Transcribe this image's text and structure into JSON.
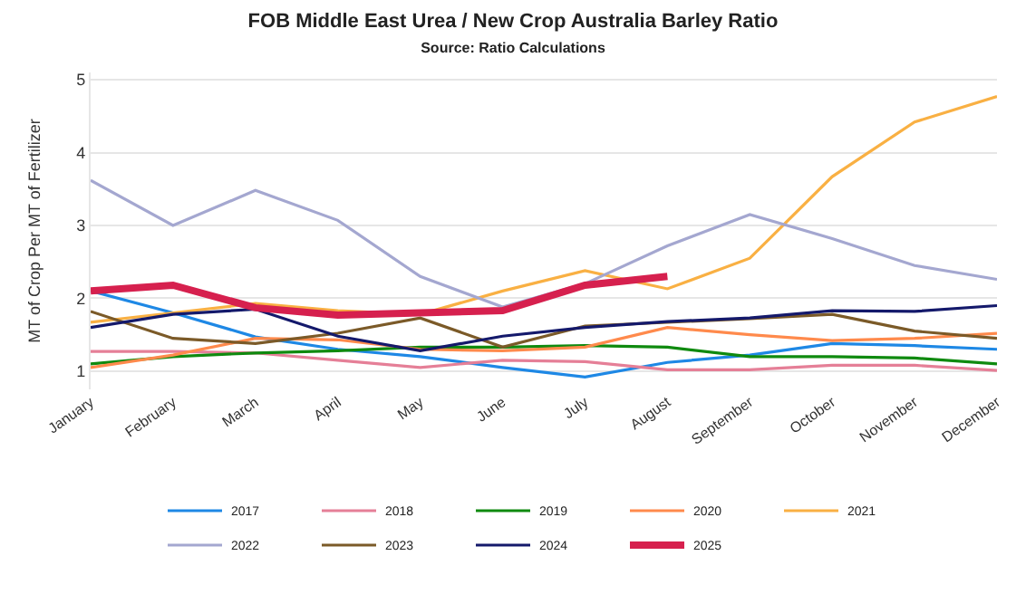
{
  "chart_data": {
    "type": "line",
    "title": "FOB Middle East Urea / New Crop Australia Barley Ratio",
    "subtitle": "Source: Ratio Calculations",
    "ylabel": "MT of Crop Per MT of Fertilizer",
    "categories": [
      "January",
      "February",
      "March",
      "April",
      "May",
      "June",
      "July",
      "August",
      "September",
      "October",
      "November",
      "December"
    ],
    "ylim": [
      0.75,
      5.1
    ],
    "yticks": [
      1,
      2,
      3,
      4,
      5
    ],
    "grid": "y",
    "legend": "bottom",
    "marker": "none",
    "line_style": "solid",
    "series": [
      {
        "name": "2017",
        "color": "#1e88e5",
        "values": [
          2.1,
          1.8,
          1.47,
          1.3,
          1.2,
          1.05,
          0.92,
          1.12,
          1.22,
          1.38,
          1.35,
          1.3
        ]
      },
      {
        "name": "2018",
        "color": "#e57f97",
        "values": [
          1.27,
          1.27,
          1.25,
          1.15,
          1.05,
          1.15,
          1.13,
          1.02,
          1.02,
          1.08,
          1.08,
          1.01
        ]
      },
      {
        "name": "2019",
        "color": "#0f8a0f",
        "values": [
          1.1,
          1.2,
          1.25,
          1.28,
          1.33,
          1.33,
          1.35,
          1.33,
          1.2,
          1.2,
          1.18,
          1.1
        ]
      },
      {
        "name": "2020",
        "color": "#ff8a4c",
        "values": [
          1.05,
          1.22,
          1.45,
          1.43,
          1.3,
          1.28,
          1.33,
          1.6,
          1.5,
          1.42,
          1.45,
          1.52
        ]
      },
      {
        "name": "2021",
        "color": "#f9b043",
        "values": [
          1.67,
          1.8,
          1.93,
          1.83,
          1.78,
          2.1,
          2.38,
          2.13,
          2.55,
          3.67,
          4.42,
          4.77
        ]
      },
      {
        "name": "2022",
        "color": "#a4a7d0",
        "values": [
          3.62,
          3.0,
          3.48,
          3.07,
          2.3,
          1.88,
          2.2,
          2.72,
          3.15,
          2.82,
          2.45,
          2.26
        ]
      },
      {
        "name": "2023",
        "color": "#7b5a28",
        "values": [
          1.82,
          1.45,
          1.38,
          1.52,
          1.73,
          1.33,
          1.62,
          1.67,
          1.72,
          1.78,
          1.55,
          1.45
        ]
      },
      {
        "name": "2024",
        "color": "#14196b",
        "values": [
          1.6,
          1.78,
          1.85,
          1.48,
          1.28,
          1.48,
          1.6,
          1.68,
          1.73,
          1.83,
          1.82,
          1.9
        ]
      },
      {
        "name": "2025",
        "color": "#d6204e",
        "values": [
          2.1,
          2.18,
          1.87,
          1.77,
          1.8,
          1.83,
          2.18,
          2.3,
          null,
          null,
          null,
          null
        ]
      }
    ]
  }
}
